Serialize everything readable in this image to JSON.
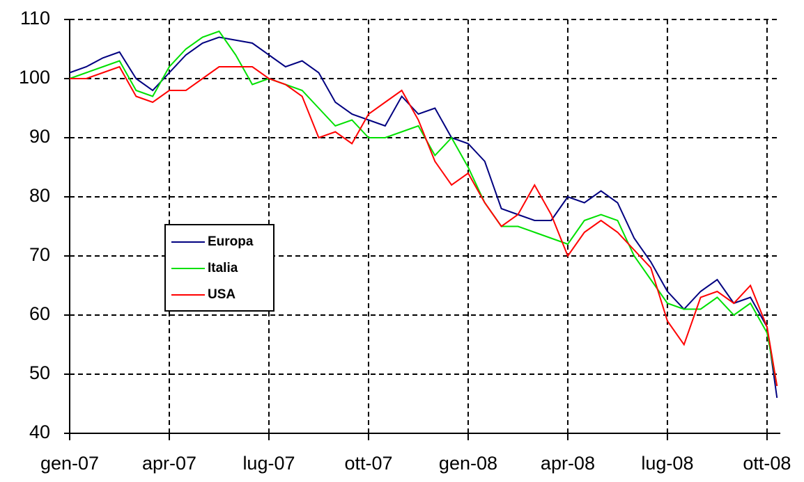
{
  "chart_data": {
    "type": "line",
    "x": [
      0,
      0.5,
      1,
      1.5,
      2,
      2.5,
      3,
      3.5,
      4,
      4.5,
      5,
      5.5,
      6,
      6.5,
      7,
      7.5,
      8,
      8.5,
      9,
      9.5,
      10,
      10.5,
      11,
      11.5,
      12,
      12.5,
      13,
      13.5,
      14,
      14.5,
      15,
      15.5,
      16,
      16.5,
      17,
      17.5,
      18,
      18.5,
      19,
      19.5,
      20,
      20.5,
      21,
      21.3
    ],
    "series": [
      {
        "name": "Europa",
        "color": "#000080",
        "values": [
          101,
          102,
          103.5,
          104.5,
          100,
          98,
          101,
          104,
          106,
          107,
          106.5,
          106,
          104,
          102,
          103,
          101,
          96,
          94,
          93,
          92,
          97,
          94,
          95,
          90,
          89,
          86,
          78,
          77,
          76,
          76,
          80,
          79,
          81,
          79,
          73,
          69,
          64,
          61,
          64,
          66,
          62,
          63,
          58,
          46
        ]
      },
      {
        "name": "Italia",
        "color": "#00e000",
        "values": [
          100,
          101,
          102,
          103,
          98,
          97,
          102,
          105,
          107,
          108,
          104,
          99,
          100,
          99,
          98,
          95,
          92,
          93,
          90,
          90,
          91,
          92,
          87,
          90,
          85,
          79,
          75,
          75,
          74,
          73,
          72,
          76,
          77,
          76,
          70,
          66,
          62,
          61,
          61,
          63,
          60,
          62,
          57,
          48
        ]
      },
      {
        "name": "USA",
        "color": "#ff0000",
        "values": [
          100,
          100,
          101,
          102,
          97,
          96,
          98,
          98,
          100,
          102,
          102,
          102,
          100,
          99,
          97,
          90,
          91,
          89,
          94,
          96,
          98,
          93,
          86,
          82,
          84,
          79,
          75,
          77,
          82,
          77,
          70,
          74,
          76,
          74,
          71,
          68,
          59,
          55,
          63,
          64,
          62,
          65,
          58,
          48
        ]
      }
    ],
    "xlim": [
      0,
      21.4
    ],
    "xticks": [
      {
        "value": 0,
        "label": "gen-07"
      },
      {
        "value": 3,
        "label": "apr-07"
      },
      {
        "value": 6,
        "label": "lug-07"
      },
      {
        "value": 9,
        "label": "ott-07"
      },
      {
        "value": 12,
        "label": "gen-08"
      },
      {
        "value": 15,
        "label": "apr-08"
      },
      {
        "value": 18,
        "label": "lug-08"
      },
      {
        "value": 21,
        "label": "ott-08"
      }
    ],
    "ylim": [
      40,
      110
    ],
    "yticks": [
      40,
      50,
      60,
      70,
      80,
      90,
      100,
      110
    ],
    "grid": true
  }
}
